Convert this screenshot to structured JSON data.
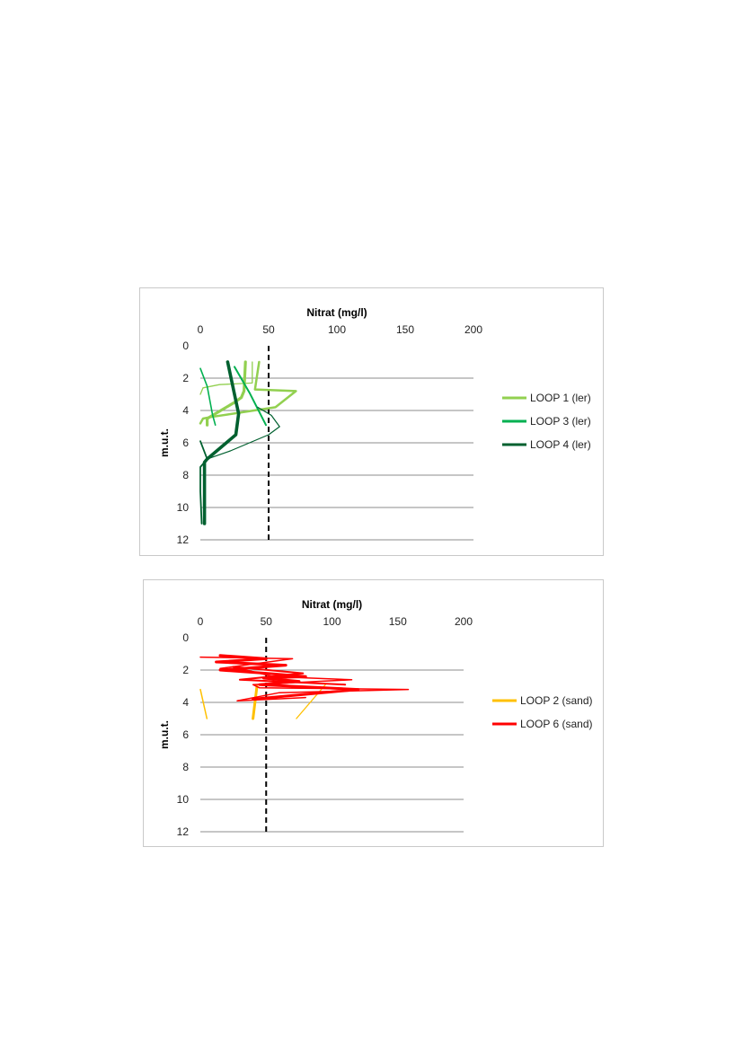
{
  "chart_data": [
    {
      "type": "line",
      "title": "Nitrat (mg/l)",
      "xlabel": "Nitrat (mg/l)",
      "ylabel": "m.u.t.",
      "xlim": [
        0,
        200
      ],
      "ylim": [
        0,
        12
      ],
      "y_inverted": true,
      "x_axis_position": "top",
      "x_ticks": [
        "0",
        "50",
        "100",
        "150",
        "200"
      ],
      "y_ticks": [
        "0",
        "2",
        "4",
        "6",
        "8",
        "10",
        "12"
      ],
      "grid": "horizontal",
      "reference_line": {
        "x": 50,
        "style": "dashed",
        "color": "#000000"
      },
      "legend_position": "right",
      "series": [
        {
          "name": "LOOP 1 (ler)",
          "color": "#92d050",
          "width": 2.5,
          "points": [
            [
              43,
              1.0
            ],
            [
              40,
              2.7
            ],
            [
              70,
              2.8
            ],
            [
              55,
              3.8
            ],
            [
              8,
              4.4
            ],
            [
              2,
              4.5
            ],
            [
              0,
              4.8
            ]
          ]
        },
        {
          "name": "LOOP 1 (ler)",
          "color": "#92d050",
          "width": 3.2,
          "points": [
            [
              33,
              1.0
            ],
            [
              32,
              2.8
            ],
            [
              30,
              3.2
            ],
            [
              25,
              3.5
            ],
            [
              5,
              4.5
            ],
            [
              5,
              4.9
            ]
          ]
        },
        {
          "name": "LOOP 1 (ler)",
          "color": "#92d050",
          "width": 1.3,
          "points": [
            [
              38,
              1.0
            ],
            [
              38,
              2.3
            ],
            [
              14,
              2.4
            ],
            [
              2,
              2.6
            ],
            [
              0,
              3.0
            ]
          ]
        },
        {
          "name": "LOOP 3 (ler)",
          "color": "#00b050",
          "width": 1.6,
          "points": [
            [
              0,
              1.4
            ],
            [
              5,
              2.5
            ],
            [
              9,
              4.3
            ],
            [
              11,
              4.9
            ]
          ]
        },
        {
          "name": "LOOP 3 (ler)",
          "color": "#00b050",
          "width": 2.0,
          "points": [
            [
              25,
              1.3
            ],
            [
              36,
              2.9
            ],
            [
              48,
              4.9
            ]
          ]
        },
        {
          "name": "LOOP 4 (ler)",
          "color": "#00602f",
          "width": 3.6,
          "points": [
            [
              20,
              1.0
            ],
            [
              25,
              3.0
            ],
            [
              28,
              4.2
            ],
            [
              26,
              5.5
            ],
            [
              5,
              7.0
            ],
            [
              3,
              7.2
            ],
            [
              3,
              8.3
            ],
            [
              3,
              11.0
            ]
          ]
        },
        {
          "name": "LOOP 4 (ler)",
          "color": "#00602f",
          "width": 1.8,
          "points": [
            [
              0,
              5.9
            ],
            [
              5,
              7.0
            ],
            [
              0,
              7.5
            ],
            [
              0,
              9.0
            ],
            [
              1,
              11.0
            ]
          ]
        },
        {
          "name": "LOOP 4 (ler)",
          "color": "#00602f",
          "width": 1.2,
          "points": [
            [
              42,
              3.8
            ],
            [
              52,
              4.3
            ],
            [
              58,
              5.0
            ],
            [
              50,
              5.5
            ],
            [
              22,
              6.5
            ],
            [
              5,
              7.0
            ]
          ]
        }
      ],
      "legend": [
        {
          "label": "LOOP 1 (ler)",
          "color": "#92d050"
        },
        {
          "label": "LOOP 3 (ler)",
          "color": "#00b050"
        },
        {
          "label": "LOOP 4 (ler)",
          "color": "#00602f"
        }
      ]
    },
    {
      "type": "line",
      "title": "Nitrat (mg/l)",
      "xlabel": "Nitrat (mg/l)",
      "ylabel": "m.u.t.",
      "xlim": [
        0,
        200
      ],
      "ylim": [
        0,
        12
      ],
      "y_inverted": true,
      "x_axis_position": "top",
      "x_ticks": [
        "0",
        "50",
        "100",
        "150",
        "200"
      ],
      "y_ticks": [
        "0",
        "2",
        "4",
        "6",
        "8",
        "10",
        "12"
      ],
      "grid": "horizontal",
      "reference_line": {
        "x": 50,
        "style": "dashed",
        "color": "#000000"
      },
      "legend_position": "right",
      "series": [
        {
          "name": "LOOP 2 (sand)",
          "color": "#ffc000",
          "width": 1.5,
          "points": [
            [
              0,
              3.2
            ],
            [
              5,
              5.0
            ]
          ]
        },
        {
          "name": "LOOP 2 (sand)",
          "color": "#ffc000",
          "width": 3.0,
          "points": [
            [
              40,
              5.0
            ],
            [
              43,
              3.0
            ]
          ]
        },
        {
          "name": "LOOP 2 (sand)",
          "color": "#ffc000",
          "width": 1.3,
          "points": [
            [
              73,
              5.0
            ],
            [
              95,
              2.9
            ]
          ]
        },
        {
          "name": "LOOP 6 (sand)",
          "color": "#ff0000",
          "width": 1.5,
          "points": [
            [
              0,
              1.2
            ],
            [
              70,
              1.3
            ],
            [
              15,
              1.9
            ],
            [
              35,
              2.0
            ],
            [
              55,
              2.4
            ],
            [
              115,
              2.6
            ],
            [
              40,
              2.9
            ],
            [
              45,
              3.1
            ],
            [
              158,
              3.2
            ],
            [
              60,
              3.4
            ],
            [
              28,
              3.9
            ],
            [
              80,
              3.7
            ]
          ]
        },
        {
          "name": "LOOP 6 (sand)",
          "color": "#ff0000",
          "width": 3.0,
          "points": [
            [
              15,
              1.1
            ],
            [
              50,
              1.3
            ],
            [
              12,
              1.5
            ],
            [
              65,
              1.7
            ],
            [
              15,
              2.0
            ],
            [
              50,
              2.2
            ],
            [
              80,
              2.4
            ],
            [
              48,
              2.5
            ],
            [
              75,
              2.7
            ],
            [
              45,
              2.9
            ],
            [
              120,
              3.2
            ],
            [
              40,
              3.8
            ]
          ]
        },
        {
          "name": "LOOP 6 (sand)",
          "color": "#ff0000",
          "width": 2.0,
          "points": [
            [
              25,
              1.8
            ],
            [
              78,
              2.2
            ],
            [
              30,
              2.6
            ],
            [
              110,
              2.9
            ]
          ]
        }
      ],
      "legend": [
        {
          "label": "LOOP 2 (sand)",
          "color": "#ffc000"
        },
        {
          "label": "LOOP 6 (sand)",
          "color": "#ff0000"
        }
      ]
    }
  ]
}
